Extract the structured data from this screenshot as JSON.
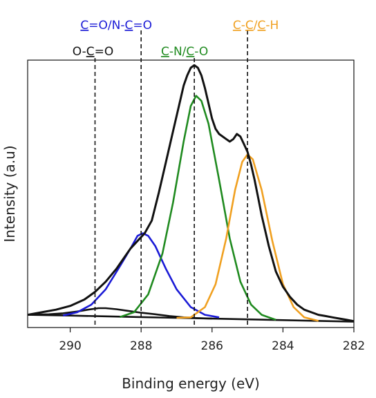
{
  "chart_data": {
    "type": "line",
    "xlabel": "Binding energy (eV)",
    "ylabel": "Intensity (a.u)",
    "xlim": [
      291.2,
      282.0
    ],
    "x_reversed": true,
    "ylim": [
      -0.05,
      1.0
    ],
    "x_ticks": [
      "290",
      "288",
      "286",
      "284",
      "282"
    ],
    "grid": false,
    "annotations": [
      {
        "segments": [
          "C",
          "=O/N-",
          "C",
          "=O"
        ],
        "underline": [
          0,
          2
        ],
        "color": "#1a1ad6",
        "row": 0,
        "line_x": 288.0
      },
      {
        "segments": [
          "C",
          "-",
          "C",
          "/",
          "C",
          "-H"
        ],
        "underline": [
          0,
          2,
          4
        ],
        "color": "#f0a020",
        "row": 0,
        "line_x": 285.0
      },
      {
        "segments": [
          "O-",
          "C",
          "=O"
        ],
        "underline": [
          1
        ],
        "color": "#111111",
        "row": 1,
        "line_x": 289.3
      },
      {
        "segments": [
          "C",
          "-N/",
          "C",
          "-O"
        ],
        "underline": [
          0,
          2
        ],
        "color": "#1f8a1f",
        "row": 1,
        "line_x": 286.5
      }
    ],
    "series": [
      {
        "role": "experimental",
        "color": "#111111",
        "x": [
          291.2,
          290.8,
          290.4,
          290.0,
          289.6,
          289.3,
          289.0,
          288.7,
          288.5,
          288.3,
          288.1,
          287.9,
          287.7,
          287.5,
          287.3,
          287.1,
          286.9,
          286.8,
          286.7,
          286.6,
          286.5,
          286.4,
          286.3,
          286.2,
          286.1,
          286.0,
          285.9,
          285.8,
          285.7,
          285.6,
          285.5,
          285.4,
          285.3,
          285.2,
          285.1,
          285.0,
          284.9,
          284.8,
          284.7,
          284.6,
          284.4,
          284.2,
          284.0,
          283.8,
          283.6,
          283.4,
          283.2,
          283.0,
          282.8,
          282.6,
          282.4,
          282.2,
          282.0
        ],
        "y": [
          0.0,
          0.01,
          0.02,
          0.035,
          0.06,
          0.09,
          0.13,
          0.18,
          0.22,
          0.26,
          0.29,
          0.32,
          0.37,
          0.48,
          0.6,
          0.72,
          0.84,
          0.9,
          0.94,
          0.97,
          0.98,
          0.97,
          0.94,
          0.89,
          0.83,
          0.77,
          0.73,
          0.71,
          0.7,
          0.69,
          0.68,
          0.69,
          0.71,
          0.7,
          0.67,
          0.64,
          0.59,
          0.53,
          0.46,
          0.39,
          0.27,
          0.17,
          0.11,
          0.07,
          0.04,
          0.02,
          0.01,
          0.0,
          -0.005,
          -0.01,
          -0.015,
          -0.02,
          -0.025
        ]
      },
      {
        "role": "background",
        "color": "#111111",
        "x": [
          291.2,
          290.0,
          289.0,
          288.0,
          287.0,
          286.0,
          285.0,
          284.0,
          283.0,
          282.0
        ],
        "y": [
          0.0,
          -0.003,
          -0.006,
          -0.009,
          -0.012,
          -0.015,
          -0.018,
          -0.021,
          -0.024,
          -0.027
        ]
      },
      {
        "role": "fit",
        "peak": "O-C=O",
        "color": "#111111",
        "x": [
          291.2,
          290.6,
          290.2,
          289.8,
          289.5,
          289.2,
          289.0,
          288.7,
          288.4,
          288.0,
          287.6,
          287.2,
          286.8,
          286.4,
          286.0
        ],
        "y": [
          0.0,
          0.002,
          0.006,
          0.013,
          0.02,
          0.026,
          0.026,
          0.022,
          0.016,
          0.008,
          0.002,
          -0.005,
          -0.01,
          -0.013,
          -0.015
        ]
      },
      {
        "role": "fit",
        "peak": "C=O/N-C=O",
        "color": "#1a1ad6",
        "x": [
          290.2,
          289.8,
          289.4,
          289.0,
          288.6,
          288.3,
          288.1,
          287.95,
          287.8,
          287.6,
          287.3,
          287.0,
          286.6,
          286.2,
          285.8
        ],
        "y": [
          -0.003,
          0.01,
          0.04,
          0.1,
          0.19,
          0.26,
          0.31,
          0.32,
          0.31,
          0.27,
          0.18,
          0.1,
          0.03,
          0.0,
          -0.01
        ]
      },
      {
        "role": "fit",
        "peak": "C-N/C-O",
        "color": "#1f8a1f",
        "x": [
          288.6,
          288.2,
          287.8,
          287.4,
          287.1,
          286.8,
          286.6,
          286.45,
          286.3,
          286.1,
          285.8,
          285.5,
          285.2,
          284.9,
          284.6,
          284.2
        ],
        "y": [
          -0.009,
          0.01,
          0.08,
          0.24,
          0.44,
          0.68,
          0.82,
          0.86,
          0.84,
          0.75,
          0.53,
          0.3,
          0.13,
          0.04,
          0.0,
          -0.02
        ]
      },
      {
        "role": "fit",
        "peak": "C-C/C-H",
        "color": "#f0a020",
        "x": [
          287.0,
          286.6,
          286.2,
          285.9,
          285.6,
          285.35,
          285.15,
          285.0,
          284.85,
          284.6,
          284.3,
          284.0,
          283.7,
          283.4,
          283.0
        ],
        "y": [
          -0.012,
          -0.01,
          0.03,
          0.12,
          0.3,
          0.49,
          0.6,
          0.63,
          0.61,
          0.49,
          0.29,
          0.12,
          0.03,
          -0.01,
          -0.024
        ]
      }
    ]
  }
}
